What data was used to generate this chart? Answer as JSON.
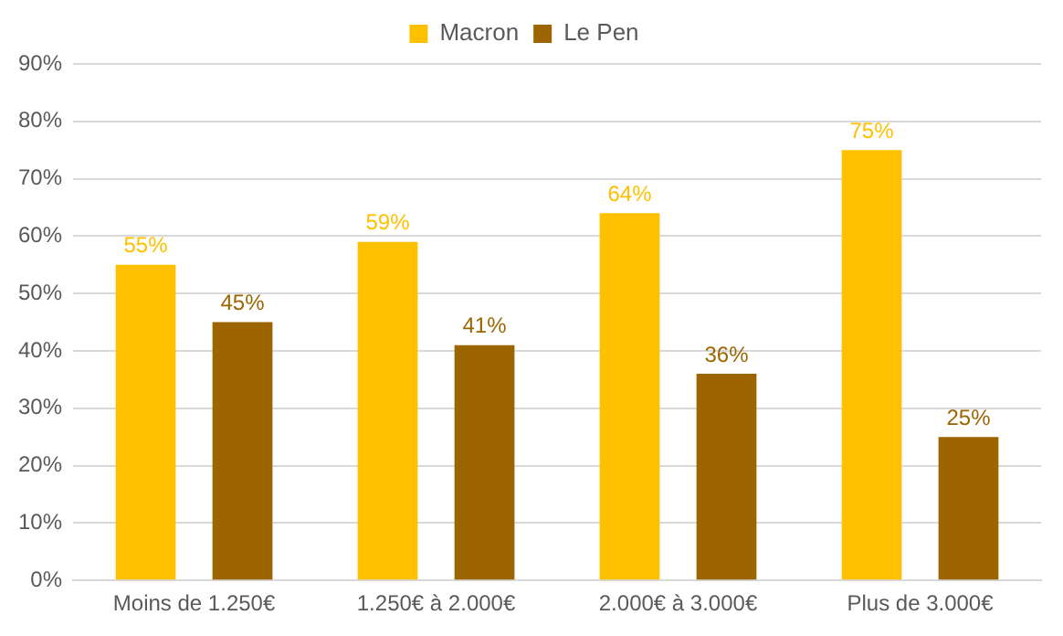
{
  "chart_data": {
    "type": "bar",
    "categories": [
      "Moins de 1.250€",
      "1.250€ à 2.000€",
      "2.000€ à 3.000€",
      "Plus de 3.000€"
    ],
    "series": [
      {
        "name": "Macron",
        "color": "#ffc000",
        "values": [
          55,
          59,
          64,
          75
        ],
        "value_labels": [
          "55%",
          "59%",
          "64%",
          "75%"
        ]
      },
      {
        "name": "Le Pen",
        "color": "#9c6500",
        "values": [
          45,
          41,
          36,
          25
        ],
        "value_labels": [
          "45%",
          "41%",
          "36%",
          "25%"
        ]
      }
    ],
    "ylim": [
      0,
      90
    ],
    "yticks": [
      {
        "value": 0,
        "label": "0%"
      },
      {
        "value": 10,
        "label": "10%"
      },
      {
        "value": 20,
        "label": "20%"
      },
      {
        "value": 30,
        "label": "30%"
      },
      {
        "value": 40,
        "label": "40%"
      },
      {
        "value": 50,
        "label": "50%"
      },
      {
        "value": 60,
        "label": "60%"
      },
      {
        "value": 70,
        "label": "70%"
      },
      {
        "value": 80,
        "label": "80%"
      },
      {
        "value": 90,
        "label": "90%"
      }
    ],
    "grid": "y",
    "legend": "top"
  }
}
